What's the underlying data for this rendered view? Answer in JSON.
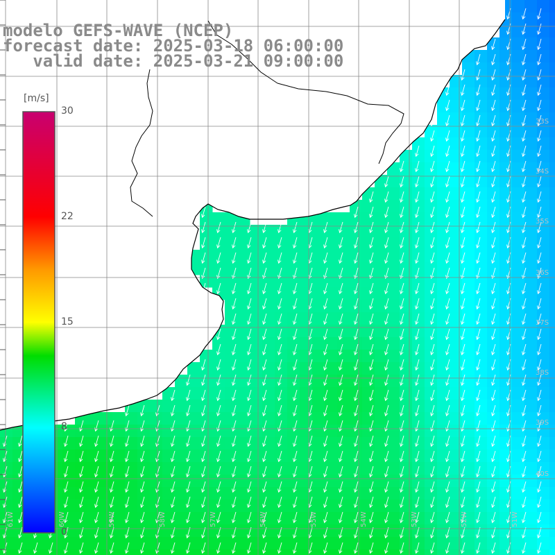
{
  "title": {
    "line1": "modelo GEFS-WAVE (NCEP)",
    "line2": "forecast date: 2025-03-18 06:00:00",
    "line3": "   valid date: 2025-03-21 09:00:00"
  },
  "legend": {
    "units": "[m/s]",
    "range": [
      0,
      30
    ],
    "ticks": [
      {
        "value": 30,
        "label": "30"
      },
      {
        "value": 22.5,
        "label": "22"
      },
      {
        "value": 15,
        "label": "15"
      },
      {
        "value": 7.5,
        "label": "8"
      },
      {
        "value": 0,
        "label": "0"
      }
    ],
    "gradient_colors": [
      "#0000ff",
      "#00aaff",
      "#00ffff",
      "#00e070",
      "#00dd00",
      "#ffff00",
      "#ff9900",
      "#ff0000",
      "#c80070"
    ]
  },
  "map": {
    "variable": "wind speed",
    "units": "m/s",
    "lon_range": [
      -61,
      -50
    ],
    "lat_range": [
      -40,
      -30
    ],
    "land_color": "#ffffff",
    "grid_color": "#888888",
    "coast_color": "#000000",
    "arrow_color": "#ffffff",
    "lon_labels": [
      "61W",
      "60W",
      "59W",
      "58W",
      "57W",
      "56W",
      "55W",
      "54W",
      "53W",
      "52W",
      "51W"
    ],
    "lat_labels": [
      "33S",
      "34S",
      "35S",
      "36S",
      "37S",
      "38S",
      "39S",
      "40S"
    ],
    "wind_direction": "from north-northeast, blowing south-southwest"
  }
}
